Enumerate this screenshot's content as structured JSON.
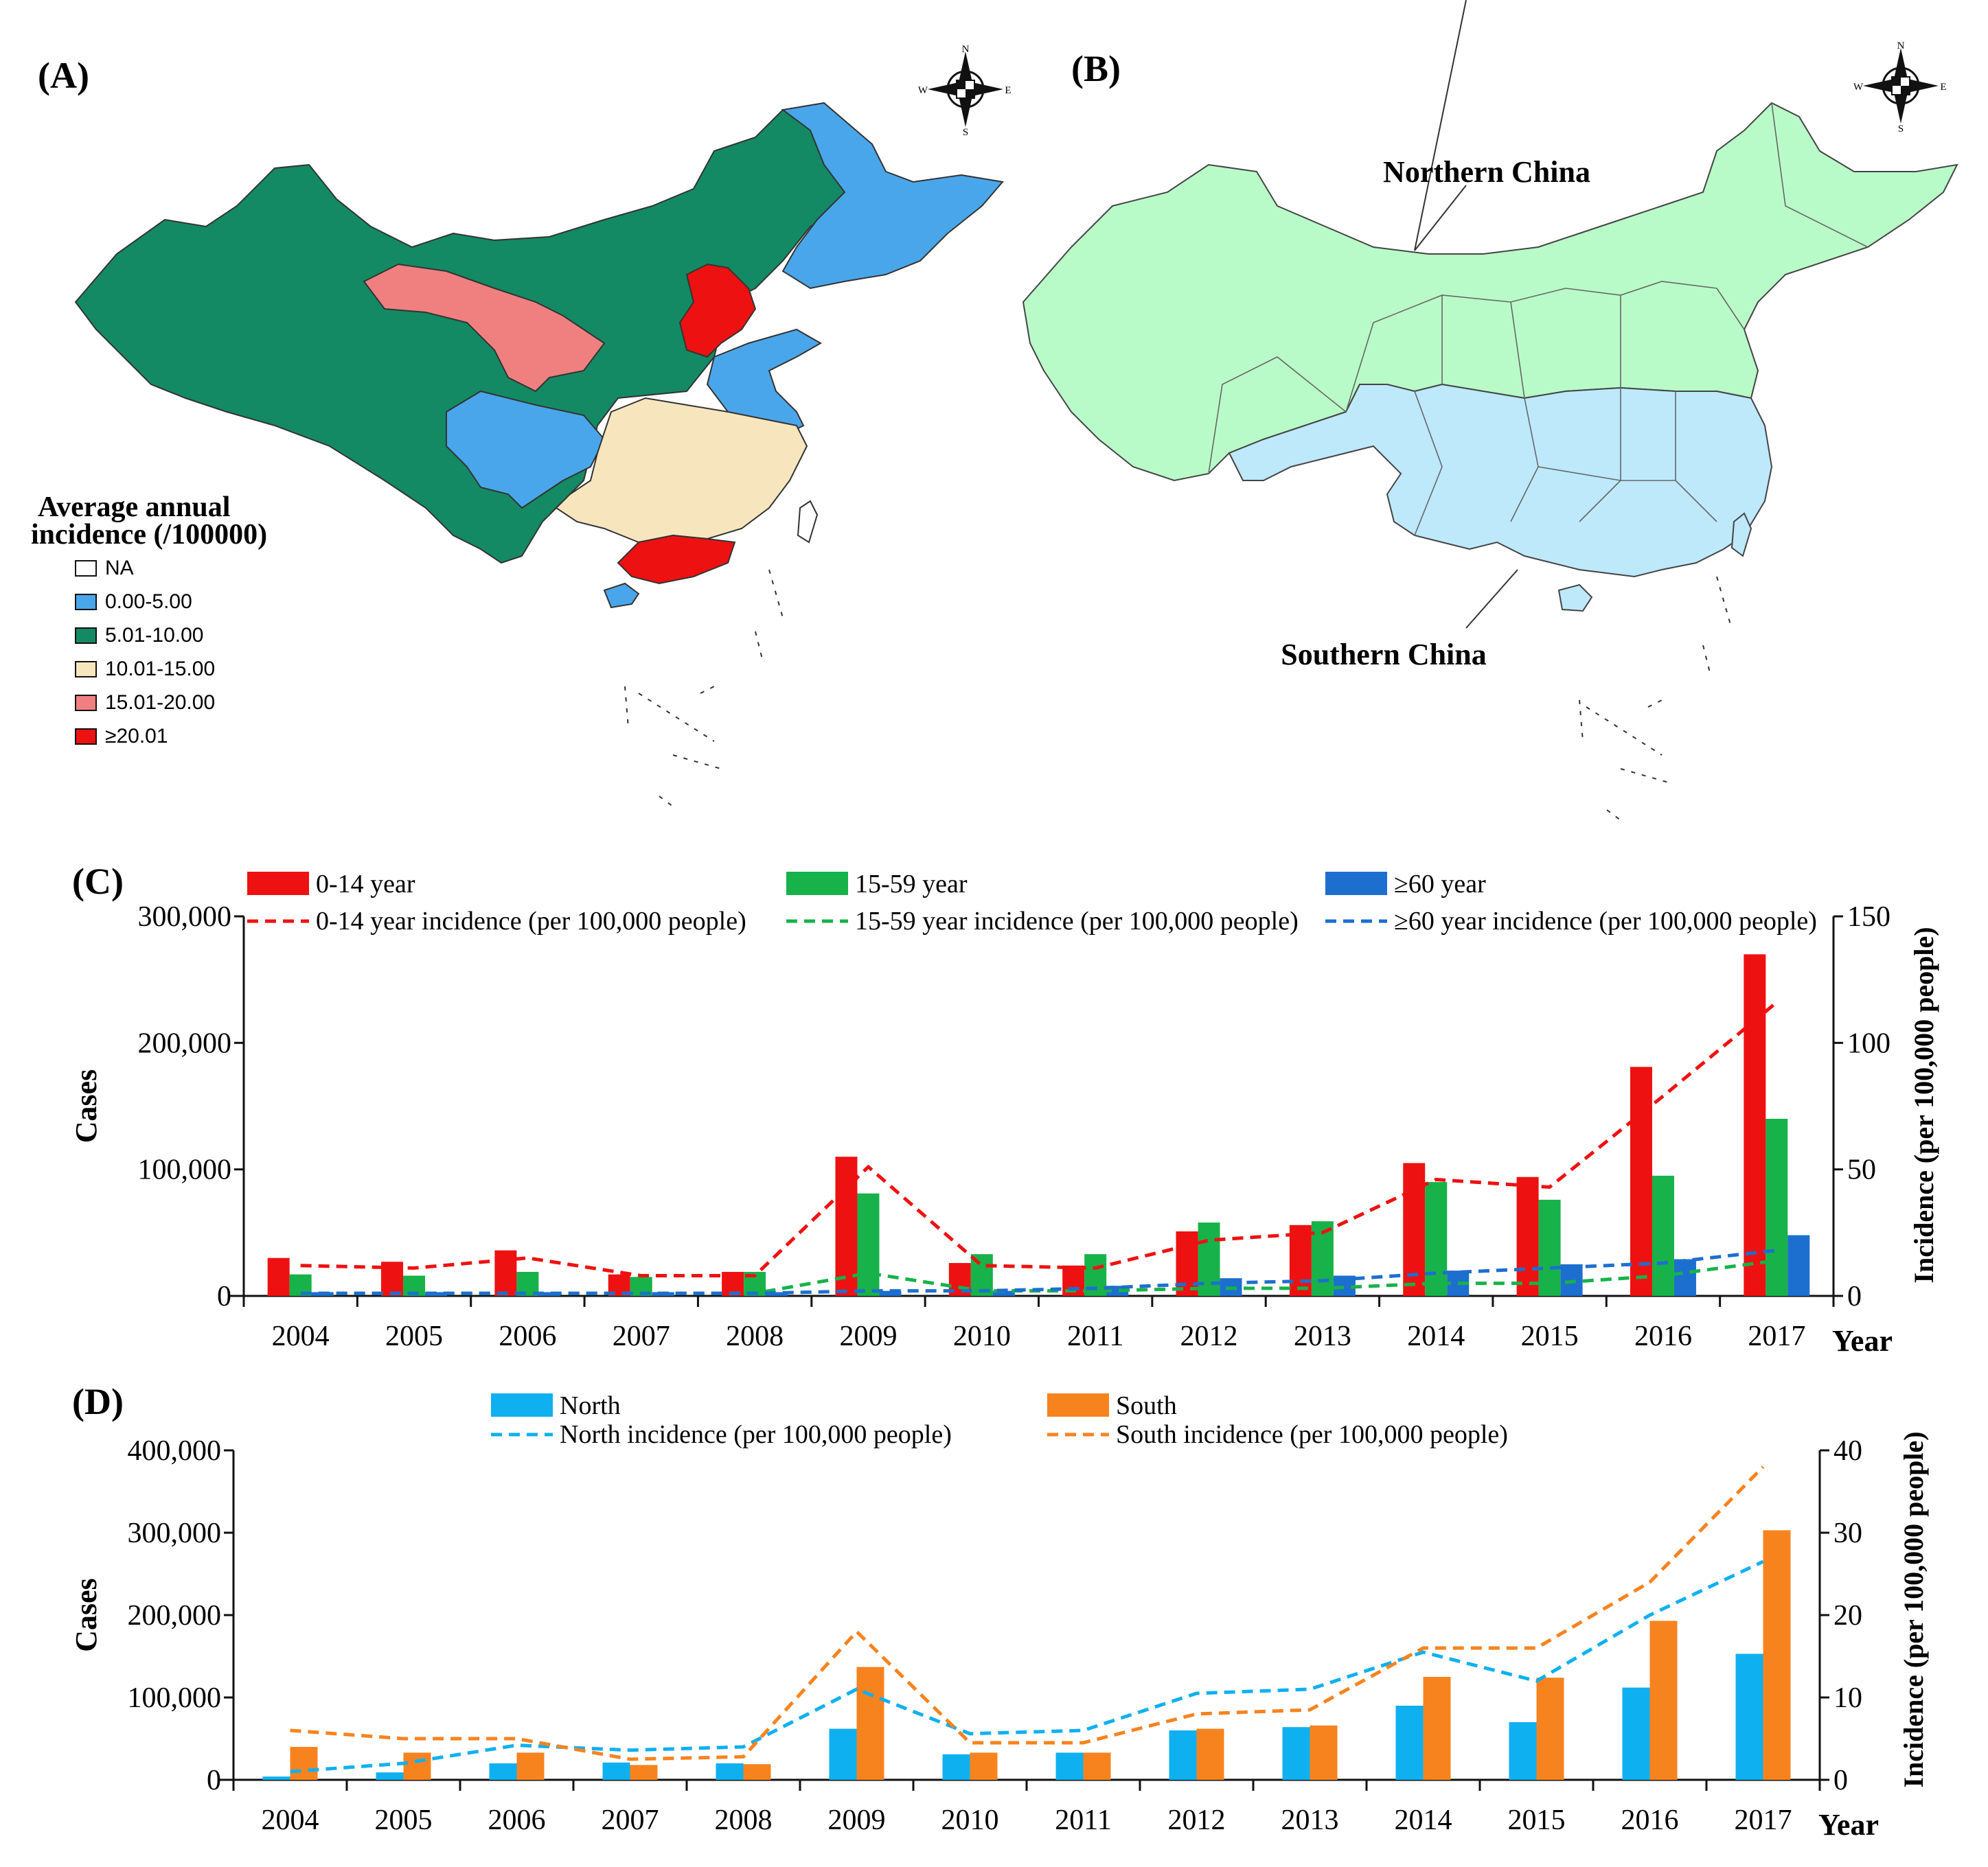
{
  "panels": {
    "a_label": "(A)",
    "b_label": "(B)",
    "c_label": "(C)",
    "d_label": "(D)"
  },
  "compass": {
    "n": "N",
    "s": "S",
    "e": "E",
    "w": "W"
  },
  "map_a": {
    "legend_title_line1": "Average annual",
    "legend_title_line2": "incidence (/100000)",
    "legend": [
      {
        "label": "NA",
        "color": "#ffffff"
      },
      {
        "label": "0.00-5.00",
        "color": "#4aa6ea"
      },
      {
        "label": "5.01-10.00",
        "color": "#138a64"
      },
      {
        "label": "10.01-15.00",
        "color": "#f7e6bd"
      },
      {
        "label": "15.01-20.00",
        "color": "#f08080"
      },
      {
        "label": "≥20.01",
        "color": "#ee1111"
      }
    ]
  },
  "map_b": {
    "north_label": "Northern China",
    "south_label": "Southern China",
    "north_color": "#b9fbc8",
    "south_color": "#bde9fb"
  },
  "chart_data": [
    {
      "type": "bar",
      "panel": "C",
      "categories": [
        "2004",
        "2005",
        "2006",
        "2007",
        "2008",
        "2009",
        "2010",
        "2011",
        "2012",
        "2013",
        "2014",
        "2015",
        "2016",
        "2017"
      ],
      "series": [
        {
          "name": "0-14 year",
          "kind": "bar",
          "color": "#ee1111",
          "values": [
            30000,
            27000,
            36000,
            17000,
            19000,
            110000,
            26000,
            24000,
            51000,
            56000,
            105000,
            94000,
            181000,
            270000
          ]
        },
        {
          "name": "15-59 year",
          "kind": "bar",
          "color": "#17b24a",
          "values": [
            17000,
            16000,
            19000,
            15000,
            19000,
            81000,
            33000,
            33000,
            58000,
            59000,
            90000,
            76000,
            95000,
            140000
          ]
        },
        {
          "name": "≥60 year",
          "kind": "bar",
          "color": "#1d6fcf",
          "values": [
            3000,
            3000,
            3000,
            3000,
            3000,
            4000,
            4000,
            8000,
            14000,
            16000,
            20000,
            25000,
            29000,
            48000
          ]
        },
        {
          "name": "0-14 year incidence (per 100,000 people)",
          "kind": "line",
          "axis": "right",
          "color": "#ee1111",
          "values": [
            12,
            11,
            15,
            8,
            8,
            51,
            12,
            11,
            22,
            25,
            46,
            43,
            79,
            116
          ]
        },
        {
          "name": "15-59 year incidence (per 100,000 people)",
          "kind": "line",
          "axis": "right",
          "color": "#17b24a",
          "values": [
            1,
            1,
            1,
            1,
            1,
            9,
            2,
            2,
            3,
            3,
            5,
            5,
            8,
            14
          ]
        },
        {
          "name": "≥60 year incidence (per 100,000 people)",
          "kind": "line",
          "axis": "right",
          "color": "#1d6fcf",
          "values": [
            1,
            1,
            1,
            1,
            1,
            2,
            2,
            3,
            5,
            6,
            9,
            11,
            13,
            18
          ]
        }
      ],
      "ylabel": "Cases",
      "y2label": "Incidence (per 100,000 people)",
      "xlabel": "Year",
      "ylim": [
        0,
        300000
      ],
      "y2lim": [
        0,
        150
      ],
      "yticks": [
        "0",
        "100,000",
        "200,000",
        "300,000"
      ],
      "y2ticks": [
        "0",
        "50",
        "100",
        "150"
      ]
    },
    {
      "type": "bar",
      "panel": "D",
      "categories": [
        "2004",
        "2005",
        "2006",
        "2007",
        "2008",
        "2009",
        "2010",
        "2011",
        "2012",
        "2013",
        "2014",
        "2015",
        "2016",
        "2017"
      ],
      "series": [
        {
          "name": "North",
          "kind": "bar",
          "color": "#0fb0f0",
          "values": [
            4000,
            9000,
            20000,
            21000,
            20000,
            62000,
            31000,
            33000,
            60000,
            64000,
            90000,
            70000,
            112000,
            153000
          ]
        },
        {
          "name": "South",
          "kind": "bar",
          "color": "#f7831f",
          "values": [
            40000,
            33000,
            33000,
            18000,
            19000,
            137000,
            33000,
            33000,
            62000,
            66000,
            125000,
            124000,
            193000,
            303000
          ]
        },
        {
          "name": "North incidence (per 100,000 people)",
          "kind": "line",
          "axis": "right",
          "color": "#0fb0f0",
          "values": [
            1,
            2,
            4.2,
            3.6,
            4,
            11,
            5.6,
            6,
            10.5,
            11,
            15.5,
            12,
            20,
            26.5
          ]
        },
        {
          "name": "South incidence (per 100,000 people)",
          "kind": "line",
          "axis": "right",
          "color": "#f7831f",
          "values": [
            6,
            5,
            5,
            2.5,
            2.8,
            18,
            4.5,
            4.5,
            8,
            8.5,
            16,
            16,
            24,
            38
          ]
        }
      ],
      "ylabel": "Cases",
      "y2label": "Incidence (per 100,000 people)",
      "xlabel": "Year",
      "ylim": [
        0,
        400000
      ],
      "y2lim": [
        0,
        40
      ],
      "yticks": [
        "0",
        "100,000",
        "200,000",
        "300,000",
        "400,000"
      ],
      "y2ticks": [
        "0",
        "10",
        "20",
        "30",
        "40"
      ]
    }
  ]
}
